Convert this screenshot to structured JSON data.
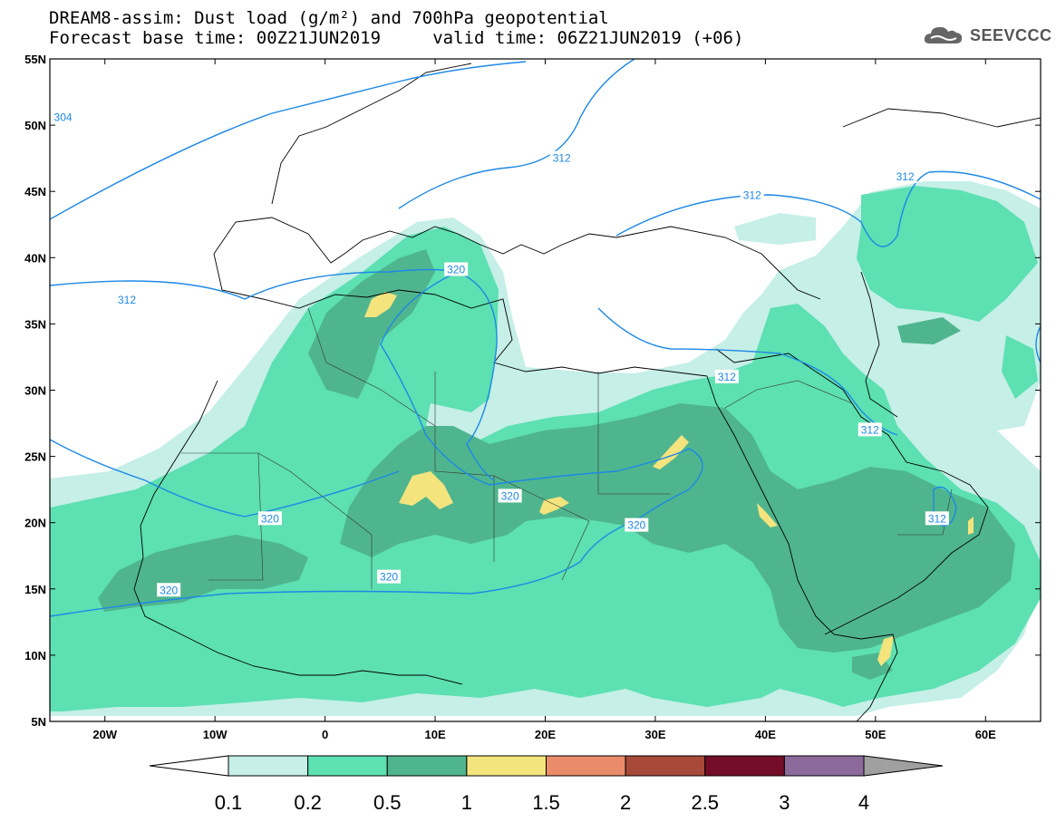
{
  "title": {
    "line1": "DREAM8-assim: Dust load (g/m²) and 700hPa geopotential",
    "line2": "Forecast base time: 00Z21JUN2019     valid time: 06Z21JUN2019 (+06)"
  },
  "logo": {
    "text": "SEEVCCC",
    "icon": "cloud-icon"
  },
  "map": {
    "lon_range": [
      -25,
      65
    ],
    "lat_range": [
      5,
      55
    ],
    "lat_ticks": [
      {
        "value": 55,
        "label": "55N"
      },
      {
        "value": 50,
        "label": "50N"
      },
      {
        "value": 45,
        "label": "45N"
      },
      {
        "value": 40,
        "label": "40N"
      },
      {
        "value": 35,
        "label": "35N"
      },
      {
        "value": 30,
        "label": "30N"
      },
      {
        "value": 25,
        "label": "25N"
      },
      {
        "value": 20,
        "label": "20N"
      },
      {
        "value": 15,
        "label": "15N"
      },
      {
        "value": 10,
        "label": "10N"
      },
      {
        "value": 5,
        "label": "5N"
      }
    ],
    "lon_ticks": [
      {
        "value": -20,
        "label": "20W"
      },
      {
        "value": -10,
        "label": "10W"
      },
      {
        "value": 0,
        "label": "0"
      },
      {
        "value": 10,
        "label": "10E"
      },
      {
        "value": 20,
        "label": "20E"
      },
      {
        "value": 30,
        "label": "30E"
      },
      {
        "value": 40,
        "label": "40E"
      },
      {
        "value": 50,
        "label": "50E"
      },
      {
        "value": 60,
        "label": "60E"
      }
    ],
    "contour_color": "#1e88e5",
    "contour_labels": [
      {
        "text": "304",
        "lon": -23.8,
        "lat": 50.6
      },
      {
        "text": "312",
        "lon": 21.5,
        "lat": 47.5
      },
      {
        "text": "312",
        "lon": 52.7,
        "lat": 46.1
      },
      {
        "text": "312",
        "lon": 38.8,
        "lat": 44.7
      },
      {
        "text": "312",
        "lon": -18.0,
        "lat": 36.8
      },
      {
        "text": "320",
        "lon": 11.9,
        "lat": 39.1
      },
      {
        "text": "312",
        "lon": 36.5,
        "lat": 31.0
      },
      {
        "text": "312",
        "lon": 49.5,
        "lat": 27.0
      },
      {
        "text": "320",
        "lon": 16.8,
        "lat": 22.0
      },
      {
        "text": "312",
        "lon": 55.6,
        "lat": 20.3
      },
      {
        "text": "320",
        "lon": -5.0,
        "lat": 20.3
      },
      {
        "text": "320",
        "lon": 28.3,
        "lat": 19.8
      },
      {
        "text": "320",
        "lon": 5.8,
        "lat": 15.9
      },
      {
        "text": "320",
        "lon": -14.2,
        "lat": 14.9
      }
    ]
  },
  "colorbar": {
    "colors": [
      "#ffffff",
      "#c5efe7",
      "#5de0b2",
      "#4fb58e",
      "#f3e47e",
      "#ea8c69",
      "#a74a3a",
      "#730d28",
      "#8c6a9c",
      "#a0a0a0"
    ],
    "labels": [
      "0.1",
      "0.2",
      "0.5",
      "1",
      "1.5",
      "2",
      "2.5",
      "3",
      "4"
    ]
  }
}
